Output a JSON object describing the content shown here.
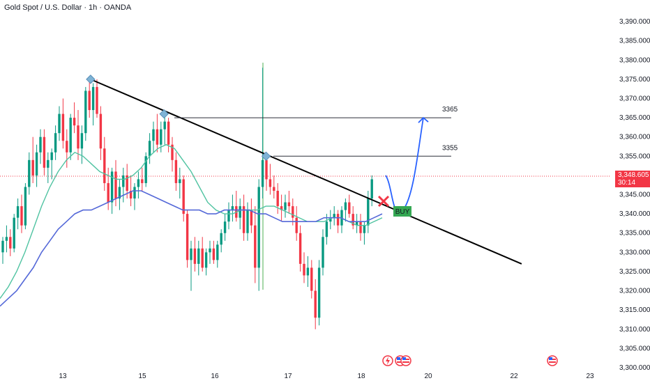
{
  "header": {
    "title": "Gold Spot / U.S. Dollar · 1h · OANDA"
  },
  "price_tag": {
    "price": "3,348.605",
    "countdown": "30:14"
  },
  "colors": {
    "up": "#089981",
    "down": "#f23645",
    "trendline": "#000000",
    "target_text": "#2962ff",
    "ma_fast": "#4fc3a1",
    "ma_slow": "#5468d8",
    "buy_bg": "#34a853",
    "projection": "#2962ff"
  },
  "annotations": {
    "target_high": "3365",
    "target_mid": "3355",
    "buy_label": "BUY"
  },
  "icons": [
    "flash-icon",
    "us-flag-icon"
  ],
  "chart_data": {
    "type": "candlestick",
    "title": "Gold Spot / U.S. Dollar · 1h · OANDA",
    "y_ticks": [
      "3,390.000",
      "3,385.000",
      "3,380.000",
      "3,375.000",
      "3,370.000",
      "3,365.000",
      "3,360.000",
      "3,355.000",
      "3,350.000",
      "3,345.000",
      "3,340.000",
      "3,335.000",
      "3,330.000",
      "3,325.000",
      "3,320.000",
      "3,315.000",
      "3,310.000",
      "3,305.000",
      "3,300.000"
    ],
    "x_ticks": [
      "13",
      "15",
      "16",
      "17",
      "18",
      "20",
      "22",
      "23"
    ],
    "ylim": [
      3300,
      3392
    ],
    "last_price": 3348.605,
    "levels": [
      3365,
      3355
    ],
    "key_points": [
      {
        "day": 13.7,
        "price": 3375
      },
      {
        "day": 15.3,
        "price": 3366
      },
      {
        "day": 16.7,
        "price": 3355
      },
      {
        "day": 18.2,
        "price": 3342
      }
    ],
    "trendline": {
      "from": {
        "day": 13.7,
        "price": 3375
      },
      "to": {
        "day": 22.1,
        "price": 3327
      }
    },
    "candles": [
      [
        3330,
        3334,
        3327,
        3333
      ],
      [
        3333,
        3337,
        3330,
        3334
      ],
      [
        3334,
        3336,
        3329,
        3331
      ],
      [
        3331,
        3340,
        3330,
        3339
      ],
      [
        3339,
        3344,
        3336,
        3342
      ],
      [
        3342,
        3345,
        3335,
        3337
      ],
      [
        3337,
        3348,
        3336,
        3347
      ],
      [
        3347,
        3356,
        3345,
        3354
      ],
      [
        3354,
        3360,
        3348,
        3350
      ],
      [
        3350,
        3358,
        3347,
        3356
      ],
      [
        3356,
        3362,
        3353,
        3360
      ],
      [
        3360,
        3362,
        3350,
        3352
      ],
      [
        3352,
        3356,
        3348,
        3354
      ],
      [
        3354,
        3357,
        3349,
        3356
      ],
      [
        3356,
        3363,
        3354,
        3361
      ],
      [
        3361,
        3368,
        3359,
        3366
      ],
      [
        3366,
        3370,
        3357,
        3359
      ],
      [
        3359,
        3362,
        3352,
        3356
      ],
      [
        3356,
        3366,
        3354,
        3365
      ],
      [
        3365,
        3369,
        3361,
        3363
      ],
      [
        3363,
        3367,
        3354,
        3357
      ],
      [
        3357,
        3363,
        3353,
        3361
      ],
      [
        3361,
        3373,
        3359,
        3372
      ],
      [
        3372,
        3375,
        3365,
        3367
      ],
      [
        3367,
        3374,
        3363,
        3373
      ],
      [
        3373,
        3375,
        3365,
        3366
      ],
      [
        3366,
        3368,
        3354,
        3357
      ],
      [
        3357,
        3360,
        3346,
        3348
      ],
      [
        3348,
        3352,
        3341,
        3343
      ],
      [
        3343,
        3352,
        3340,
        3351
      ],
      [
        3351,
        3354,
        3342,
        3344
      ],
      [
        3344,
        3349,
        3341,
        3347
      ],
      [
        3347,
        3352,
        3343,
        3350
      ],
      [
        3350,
        3353,
        3344,
        3346
      ],
      [
        3346,
        3350,
        3342,
        3344
      ],
      [
        3344,
        3348,
        3341,
        3347
      ],
      [
        3347,
        3351,
        3344,
        3349
      ],
      [
        3349,
        3352,
        3346,
        3348
      ],
      [
        3348,
        3356,
        3347,
        3355
      ],
      [
        3355,
        3361,
        3353,
        3359
      ],
      [
        3359,
        3364,
        3356,
        3362
      ],
      [
        3362,
        3366,
        3356,
        3358
      ],
      [
        3358,
        3364,
        3356,
        3362
      ],
      [
        3362,
        3367,
        3358,
        3364
      ],
      [
        3364,
        3365,
        3356,
        3358
      ],
      [
        3358,
        3360,
        3351,
        3354
      ],
      [
        3354,
        3356,
        3346,
        3348
      ],
      [
        3348,
        3352,
        3344,
        3349
      ],
      [
        3349,
        3350,
        3338,
        3340
      ],
      [
        3340,
        3341,
        3326,
        3328
      ],
      [
        3328,
        3333,
        3320,
        3331
      ],
      [
        3331,
        3334,
        3325,
        3327
      ],
      [
        3327,
        3333,
        3324,
        3331
      ],
      [
        3331,
        3334,
        3325,
        3326
      ],
      [
        3326,
        3331,
        3324,
        3330
      ],
      [
        3330,
        3333,
        3327,
        3331
      ],
      [
        3331,
        3333,
        3327,
        3328
      ],
      [
        3328,
        3333,
        3326,
        3332
      ],
      [
        3332,
        3336,
        3330,
        3335
      ],
      [
        3335,
        3340,
        3333,
        3338
      ],
      [
        3338,
        3343,
        3336,
        3341
      ],
      [
        3341,
        3345,
        3338,
        3342
      ],
      [
        3342,
        3346,
        3338,
        3339
      ],
      [
        3339,
        3344,
        3336,
        3342
      ],
      [
        3342,
        3345,
        3333,
        3335
      ],
      [
        3335,
        3343,
        3333,
        3341
      ],
      [
        3341,
        3344,
        3335,
        3337
      ],
      [
        3337,
        3342,
        3322,
        3326
      ],
      [
        3326,
        3349,
        3320,
        3347
      ],
      [
        3347,
        3378,
        3344,
        3354
      ],
      [
        3354,
        3356,
        3346,
        3349
      ],
      [
        3349,
        3353,
        3345,
        3347
      ],
      [
        3347,
        3350,
        3344,
        3346
      ],
      [
        3346,
        3348,
        3340,
        3342
      ],
      [
        3342,
        3345,
        3338,
        3341
      ],
      [
        3341,
        3345,
        3339,
        3343
      ],
      [
        3343,
        3346,
        3340,
        3342
      ],
      [
        3342,
        3344,
        3337,
        3339
      ],
      [
        3339,
        3342,
        3333,
        3335
      ],
      [
        3335,
        3337,
        3325,
        3327
      ],
      [
        3327,
        3330,
        3322,
        3324
      ],
      [
        3324,
        3329,
        3321,
        3326
      ],
      [
        3326,
        3328,
        3318,
        3320
      ],
      [
        3320,
        3323,
        3310,
        3313
      ],
      [
        3313,
        3328,
        3311,
        3326
      ],
      [
        3326,
        3336,
        3324,
        3334
      ],
      [
        3334,
        3340,
        3332,
        3338
      ],
      [
        3338,
        3341,
        3336,
        3339
      ],
      [
        3339,
        3342,
        3337,
        3340
      ],
      [
        3340,
        3341,
        3335,
        3337
      ],
      [
        3337,
        3342,
        3335,
        3341
      ],
      [
        3341,
        3344,
        3338,
        3343
      ],
      [
        3343,
        3345,
        3339,
        3340
      ],
      [
        3340,
        3342,
        3336,
        3337
      ],
      [
        3337,
        3340,
        3335,
        3338
      ],
      [
        3338,
        3340,
        3333,
        3335
      ],
      [
        3335,
        3338,
        3332,
        3337
      ],
      [
        3337,
        3346,
        3335,
        3344
      ],
      [
        3344,
        3350,
        3342,
        3349
      ]
    ],
    "ma_fast": [
      3318,
      3321,
      3325,
      3330,
      3336,
      3342,
      3347,
      3351,
      3354,
      3356,
      3355,
      3353,
      3351,
      3350,
      3349,
      3349,
      3350,
      3352,
      3355,
      3357,
      3358,
      3357,
      3354,
      3351,
      3347,
      3343,
      3341,
      3340,
      3340,
      3341,
      3341,
      3341,
      3342,
      3342,
      3341,
      3340,
      3339,
      3338,
      3338,
      3338,
      3339,
      3339,
      3338,
      3337,
      3337,
      3338,
      3339
    ],
    "ma_slow": [
      3316,
      3318,
      3320,
      3323,
      3326,
      3330,
      3333,
      3336,
      3338,
      3340,
      3341,
      3341,
      3342,
      3343,
      3344,
      3345,
      3346,
      3346,
      3345,
      3344,
      3343,
      3342,
      3341,
      3341,
      3341,
      3340,
      3340,
      3341,
      3341,
      3341,
      3341,
      3340,
      3340,
      3339,
      3338,
      3338,
      3338,
      3338,
      3338,
      3339,
      3339,
      3339,
      3338,
      3338,
      3338,
      3339,
      3340
    ]
  }
}
